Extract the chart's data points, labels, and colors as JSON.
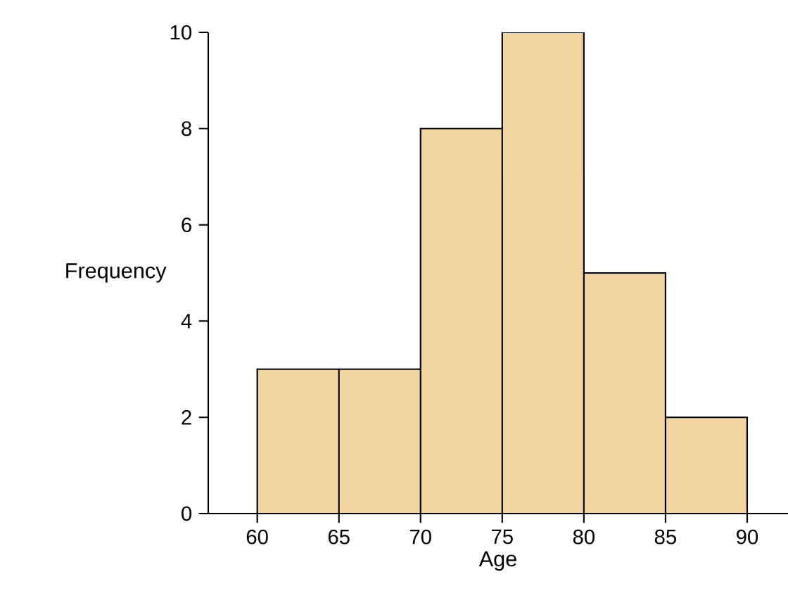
{
  "chart_data": {
    "type": "histogram",
    "xlabel": "Age",
    "ylabel": "Frequency",
    "bins": [
      60,
      65,
      70,
      75,
      80,
      85,
      90
    ],
    "values": [
      3,
      3,
      8,
      10,
      5,
      2
    ],
    "color": "#f2d59e",
    "xlim": [
      57,
      92.5
    ],
    "ylim": [
      0,
      10
    ],
    "xticks": [
      60,
      65,
      70,
      75,
      80,
      85,
      90
    ],
    "yticks": [
      0,
      2,
      4,
      6,
      8,
      10
    ],
    "grid": false
  }
}
